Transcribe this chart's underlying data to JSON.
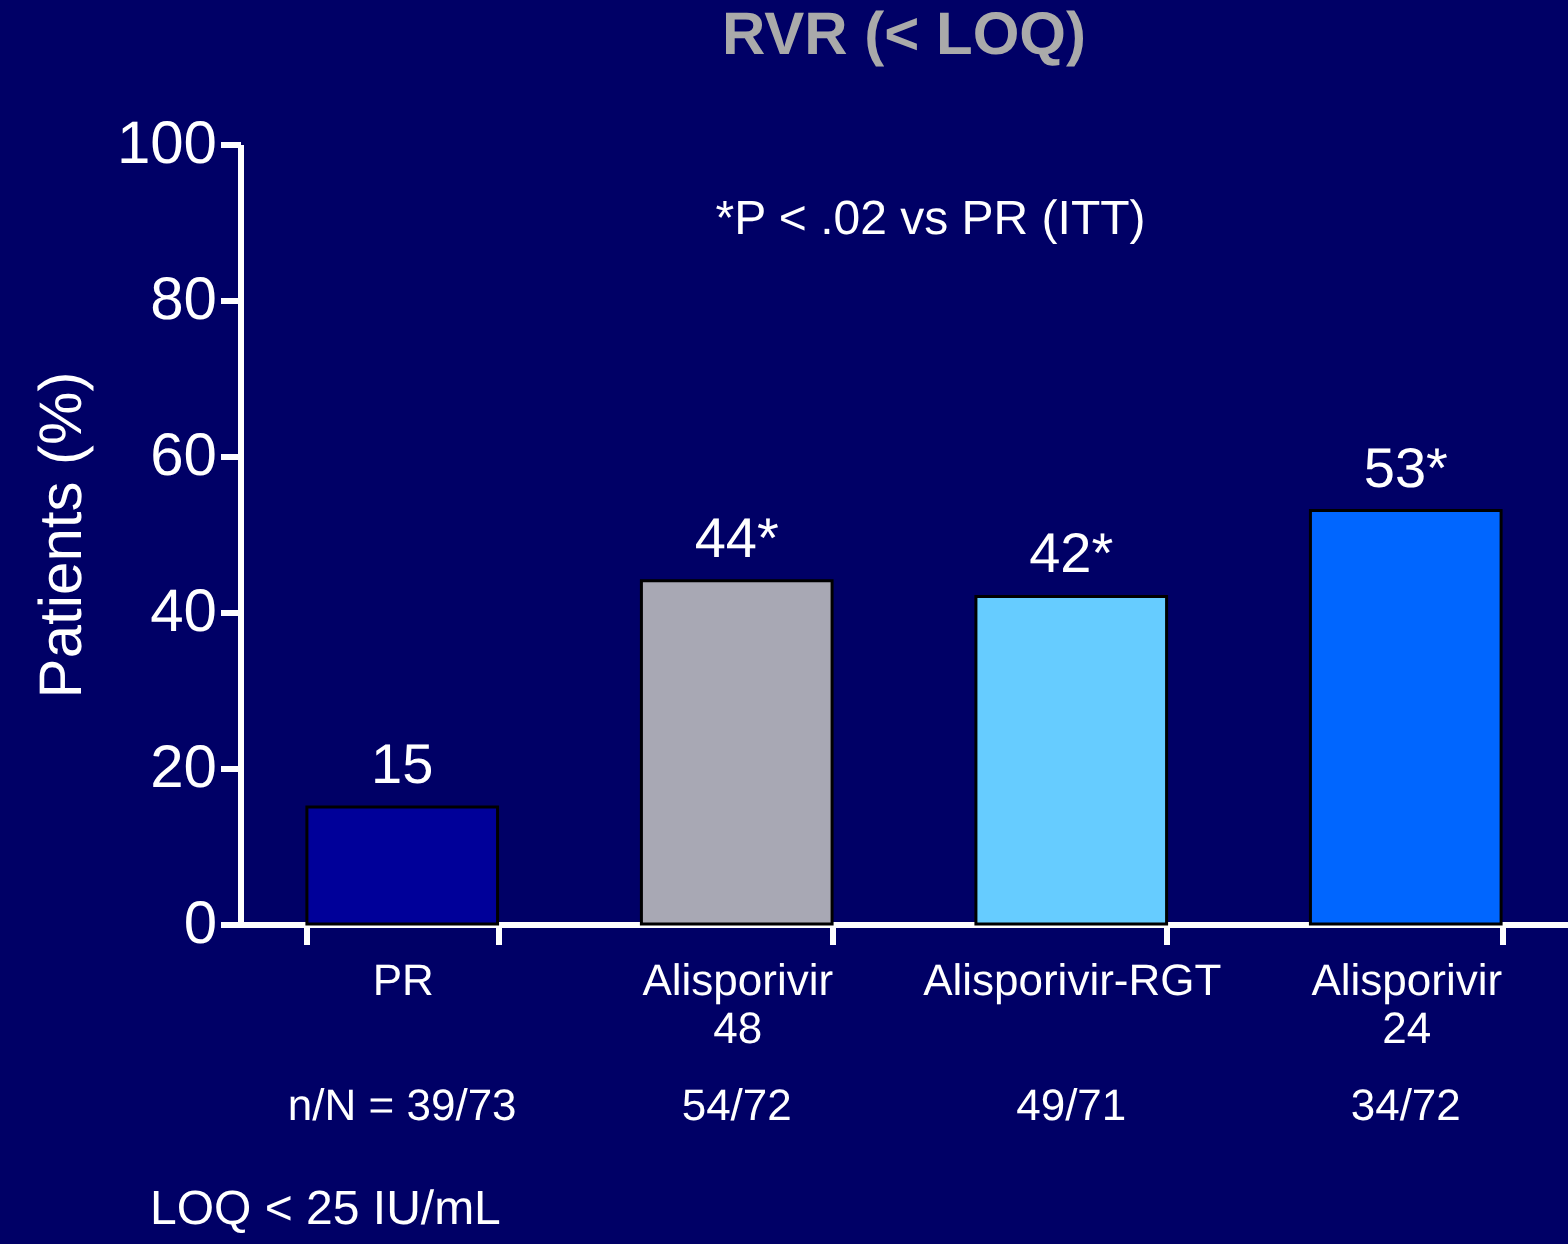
{
  "chart_data": {
    "type": "bar",
    "title": "RVR (< LOQ)",
    "ylabel": "Patients (%)",
    "categories": [
      "PR",
      "Alisporivir 48",
      "Alisporivir-RGT",
      "Alisporivir 24"
    ],
    "values": [
      15,
      44,
      42,
      53
    ],
    "value_labels": [
      "15",
      "44*",
      "42*",
      "53*"
    ],
    "colors": [
      "#000099",
      "#a8a8b4",
      "#66ccff",
      "#0066ff"
    ],
    "ylim": [
      0,
      100
    ],
    "yticks": [
      0,
      20,
      40,
      60,
      80,
      100
    ],
    "grid": false,
    "annotations": [
      "*P < .02 vs PR (ITT)",
      "n/N = 39/73",
      "54/72",
      "49/71",
      "34/72",
      "LOQ < 25 IU/mL"
    ]
  }
}
